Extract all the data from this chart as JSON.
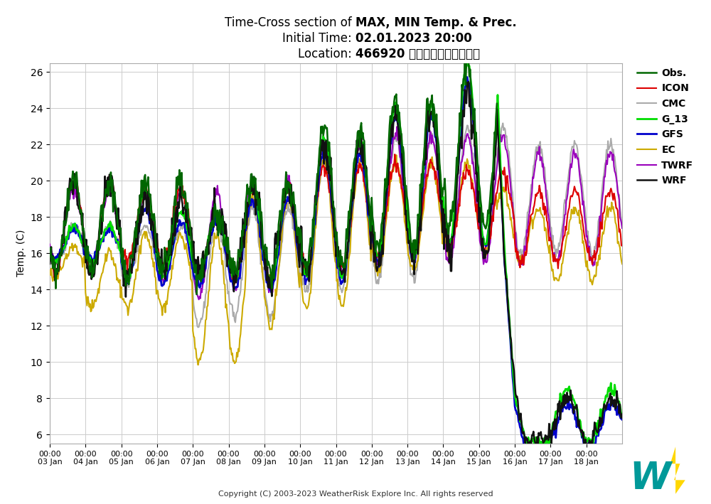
{
  "title_normal1": "Time-Cross section of ",
  "title_bold1": "MAX, MIN Temp. & Prec.",
  "title_normal2": "Initial Time: ",
  "title_bold2": "02.01.2023 20:00",
  "title_normal3": "Location: ",
  "title_bold3": "466920 臺北市中正區臺北測站",
  "ylabel": "Temp. (C)",
  "yticks": [
    6,
    8,
    10,
    12,
    14,
    16,
    18,
    20,
    22,
    24,
    26
  ],
  "ylim": [
    5.5,
    26.5
  ],
  "xtick_labels": [
    "00:00\n03 Jan",
    "00:00\n04 Jan",
    "00:00\n05 Jan",
    "00:00\n06 Jan",
    "00:00\n07 Jan",
    "00:00\n08 Jan",
    "00:00\n09 Jan",
    "00:00\n10 Jan",
    "00:00\n11 Jan",
    "00:00\n12 Jan",
    "00:00\n13 Jan",
    "00:00\n14 Jan",
    "00:00\n15 Jan",
    "00:00\n16 Jan",
    "00:00\n17 Jan",
    "00:00\n18 Jan"
  ],
  "copyright": "Copyright (C) 2003-2023 WeatherRisk Explore Inc. All rights reserved",
  "legend_entries": [
    "Obs.",
    "ICON",
    "CMC",
    "G_13",
    "GFS",
    "EC",
    "TWRF",
    "WRF"
  ],
  "colors": {
    "Obs.": "#006600",
    "ICON": "#dd0000",
    "CMC": "#aaaaaa",
    "G_13": "#00dd00",
    "GFS": "#0000cc",
    "EC": "#ccaa00",
    "TWRF": "#9900bb",
    "WRF": "#111111"
  },
  "linewidths": {
    "Obs.": 1.8,
    "ICON": 1.5,
    "CMC": 1.5,
    "G_13": 2.0,
    "GFS": 2.0,
    "EC": 1.5,
    "TWRF": 1.5,
    "WRF": 1.8
  },
  "background_color": "#ffffff",
  "plot_bg": "#ffffff",
  "grid_color": "#cccccc",
  "n_days": 16,
  "pts_per_day": 48
}
